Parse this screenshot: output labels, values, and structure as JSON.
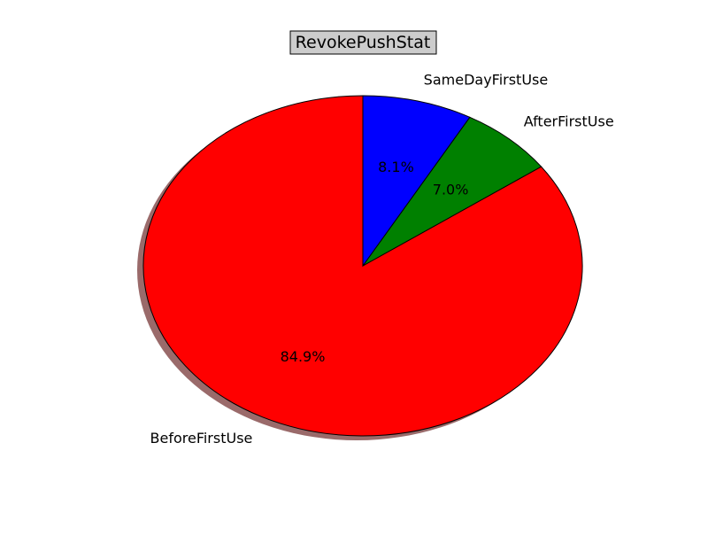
{
  "chart_data": {
    "type": "pie",
    "title": "RevokePushStat",
    "categories": [
      "BeforeFirstUse",
      "AfterFirstUse",
      "SameDayFirstUse"
    ],
    "values": [
      84.9,
      7.0,
      8.1
    ],
    "percent_labels": [
      "84.9%",
      "7.0%",
      "8.1%"
    ],
    "colors": [
      "#ff0000",
      "#008000",
      "#0000ff"
    ],
    "start_angle_deg": 90,
    "direction": "counterclockwise",
    "shadow": true,
    "shadow_color": "#9a6a6a",
    "title_box_color": "#cccccc",
    "legend": "none"
  }
}
